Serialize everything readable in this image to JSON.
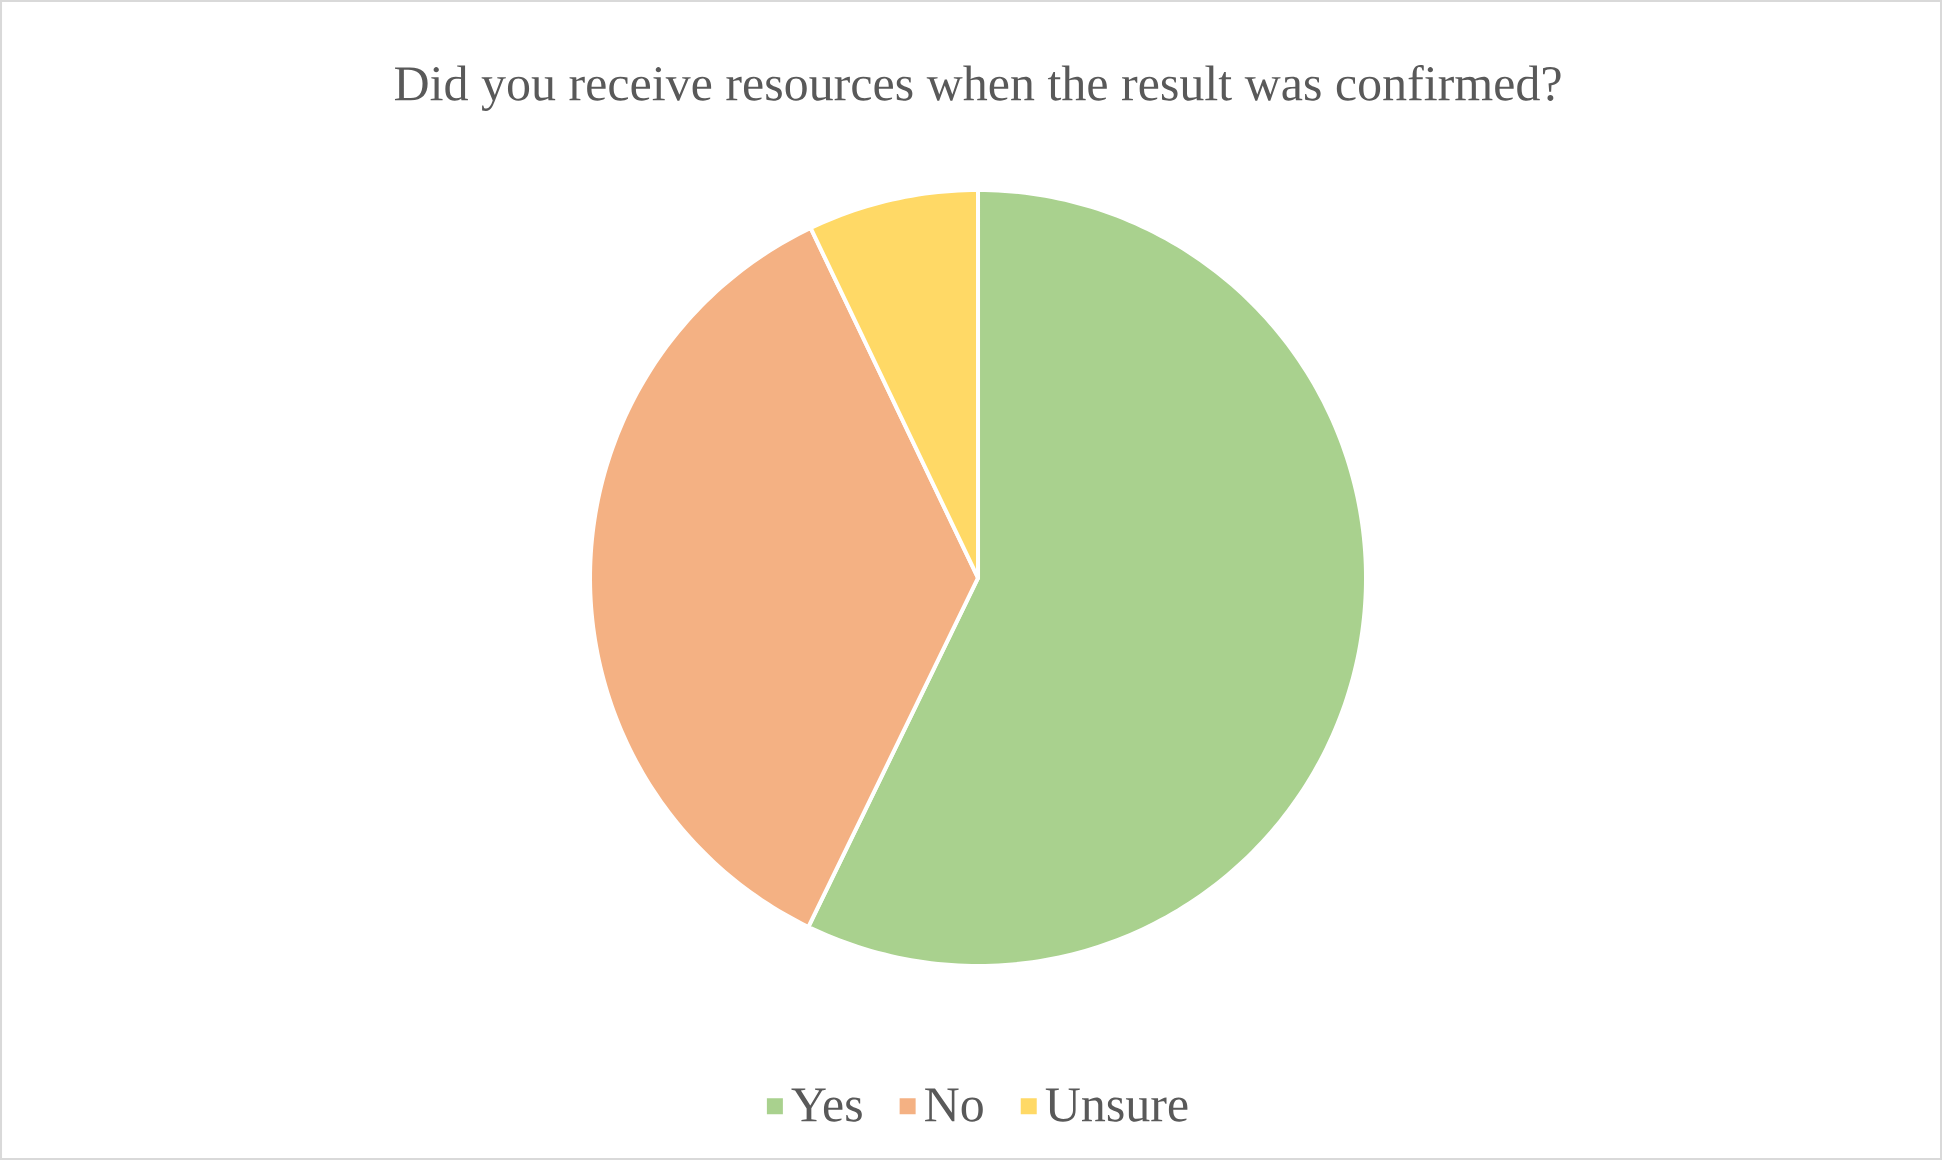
{
  "chart_data": {
    "type": "pie",
    "title": "Did you receive resources when the result was confirmed?",
    "categories": [
      "Yes",
      "No",
      "Unsure"
    ],
    "values": [
      57.2,
      35.7,
      7.1
    ],
    "colors": [
      "#a9d18e",
      "#f4b183",
      "#ffd966"
    ],
    "legend": "bottom"
  }
}
